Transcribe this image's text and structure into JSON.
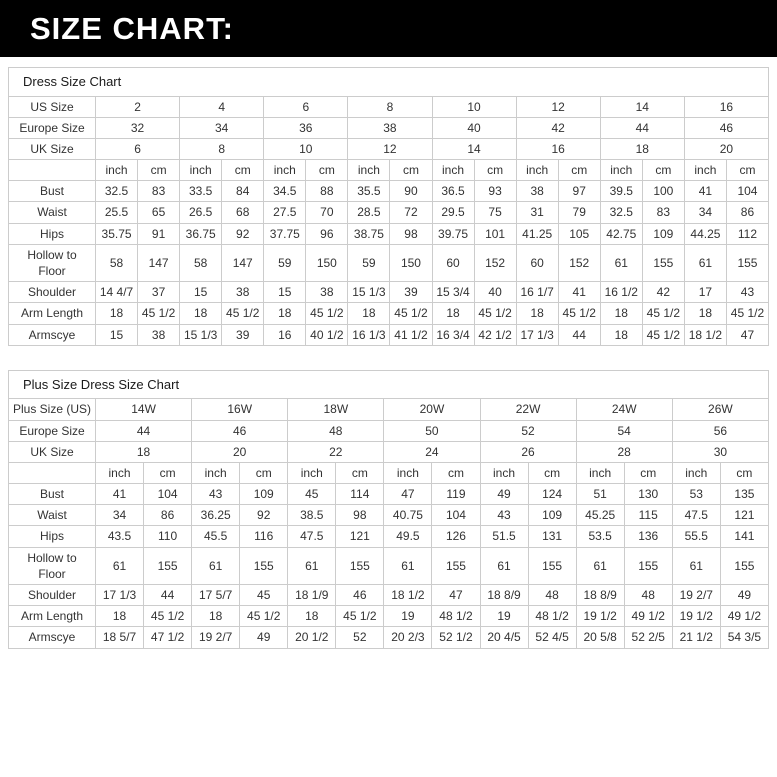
{
  "banner": {
    "title": "SIZE CHART:"
  },
  "tables": [
    {
      "title": "Dress Size Chart",
      "unit_labels": [
        "inch",
        "cm"
      ],
      "size_rows": [
        {
          "label": "US Size",
          "values": [
            "2",
            "4",
            "6",
            "8",
            "10",
            "12",
            "14",
            "16"
          ]
        },
        {
          "label": "Europe Size",
          "values": [
            "32",
            "34",
            "36",
            "38",
            "40",
            "42",
            "44",
            "46"
          ]
        },
        {
          "label": "UK Size",
          "values": [
            "6",
            "8",
            "10",
            "12",
            "14",
            "16",
            "18",
            "20"
          ]
        }
      ],
      "measure_rows": [
        {
          "label": "Bust",
          "values": [
            "32.5",
            "83",
            "33.5",
            "84",
            "34.5",
            "88",
            "35.5",
            "90",
            "36.5",
            "93",
            "38",
            "97",
            "39.5",
            "100",
            "41",
            "104"
          ]
        },
        {
          "label": "Waist",
          "values": [
            "25.5",
            "65",
            "26.5",
            "68",
            "27.5",
            "70",
            "28.5",
            "72",
            "29.5",
            "75",
            "31",
            "79",
            "32.5",
            "83",
            "34",
            "86"
          ]
        },
        {
          "label": "Hips",
          "values": [
            "35.75",
            "91",
            "36.75",
            "92",
            "37.75",
            "96",
            "38.75",
            "98",
            "39.75",
            "101",
            "41.25",
            "105",
            "42.75",
            "109",
            "44.25",
            "112"
          ]
        },
        {
          "label": "Hollow to Floor",
          "values": [
            "58",
            "147",
            "58",
            "147",
            "59",
            "150",
            "59",
            "150",
            "60",
            "152",
            "60",
            "152",
            "61",
            "155",
            "61",
            "155"
          ]
        },
        {
          "label": "Shoulder",
          "values": [
            "14 4/7",
            "37",
            "15",
            "38",
            "15",
            "38",
            "15 1/3",
            "39",
            "15 3/4",
            "40",
            "16 1/7",
            "41",
            "16 1/2",
            "42",
            "17",
            "43"
          ]
        },
        {
          "label": "Arm Length",
          "values": [
            "18",
            "45 1/2",
            "18",
            "45 1/2",
            "18",
            "45 1/2",
            "18",
            "45 1/2",
            "18",
            "45 1/2",
            "18",
            "45 1/2",
            "18",
            "45 1/2",
            "18",
            "45 1/2"
          ]
        },
        {
          "label": "Armscye",
          "values": [
            "15",
            "38",
            "15 1/3",
            "39",
            "16",
            "40 1/2",
            "16 1/3",
            "41 1/2",
            "16 3/4",
            "42 1/2",
            "17 1/3",
            "44",
            "18",
            "45 1/2",
            "18 1/2",
            "47"
          ]
        }
      ]
    },
    {
      "title": "Plus Size Dress Size Chart",
      "unit_labels": [
        "inch",
        "cm"
      ],
      "size_rows": [
        {
          "label": "Plus Size (US)",
          "values": [
            "14W",
            "16W",
            "18W",
            "20W",
            "22W",
            "24W",
            "26W"
          ]
        },
        {
          "label": "Europe Size",
          "values": [
            "44",
            "46",
            "48",
            "50",
            "52",
            "54",
            "56"
          ]
        },
        {
          "label": "UK Size",
          "values": [
            "18",
            "20",
            "22",
            "24",
            "26",
            "28",
            "30"
          ]
        }
      ],
      "measure_rows": [
        {
          "label": "Bust",
          "values": [
            "41",
            "104",
            "43",
            "109",
            "45",
            "114",
            "47",
            "119",
            "49",
            "124",
            "51",
            "130",
            "53",
            "135"
          ]
        },
        {
          "label": "Waist",
          "values": [
            "34",
            "86",
            "36.25",
            "92",
            "38.5",
            "98",
            "40.75",
            "104",
            "43",
            "109",
            "45.25",
            "115",
            "47.5",
            "121"
          ]
        },
        {
          "label": "Hips",
          "values": [
            "43.5",
            "110",
            "45.5",
            "116",
            "47.5",
            "121",
            "49.5",
            "126",
            "51.5",
            "131",
            "53.5",
            "136",
            "55.5",
            "141"
          ]
        },
        {
          "label": "Hollow to Floor",
          "values": [
            "61",
            "155",
            "61",
            "155",
            "61",
            "155",
            "61",
            "155",
            "61",
            "155",
            "61",
            "155",
            "61",
            "155"
          ]
        },
        {
          "label": "Shoulder",
          "values": [
            "17 1/3",
            "44",
            "17 5/7",
            "45",
            "18 1/9",
            "46",
            "18 1/2",
            "47",
            "18 8/9",
            "48",
            "18 8/9",
            "48",
            "19 2/7",
            "49"
          ]
        },
        {
          "label": "Arm Length",
          "values": [
            "18",
            "45 1/2",
            "18",
            "45 1/2",
            "18",
            "45 1/2",
            "19",
            "48 1/2",
            "19",
            "48 1/2",
            "19 1/2",
            "49 1/2",
            "19 1/2",
            "49 1/2"
          ]
        },
        {
          "label": "Armscye",
          "values": [
            "18 5/7",
            "47 1/2",
            "19 2/7",
            "49",
            "20 1/2",
            "52",
            "20 2/3",
            "52 1/2",
            "20 4/5",
            "52 4/5",
            "20 5/8",
            "52 2/5",
            "21 1/2",
            "54 3/5"
          ]
        }
      ]
    }
  ]
}
